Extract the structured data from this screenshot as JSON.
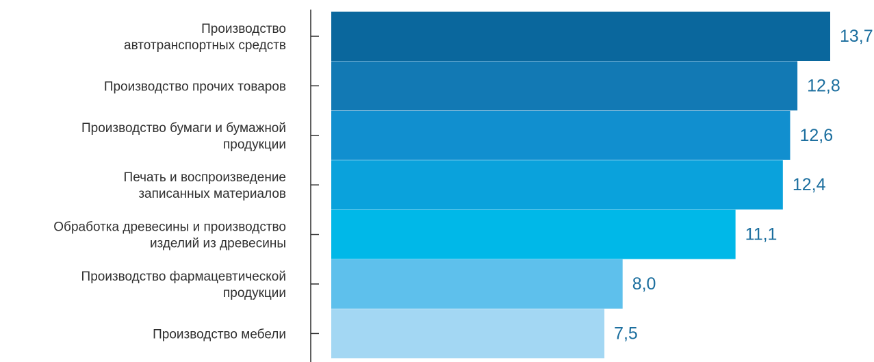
{
  "chart_data": {
    "type": "bar",
    "orientation": "horizontal",
    "title": "",
    "xlabel": "",
    "ylabel": "",
    "categories": [
      [
        "Производство",
        "автотранспортных средств"
      ],
      [
        "Производство прочих товаров"
      ],
      [
        "Производство бумаги и бумажной",
        "продукции"
      ],
      [
        "Печать и воспроизведение",
        "записанных материалов"
      ],
      [
        "Обработка древесины и производство",
        "изделий из древесины"
      ],
      [
        "Производство фармацевтической",
        "продукции"
      ],
      [
        "Производство мебели"
      ]
    ],
    "values": [
      13.7,
      12.8,
      12.6,
      12.4,
      11.1,
      8.0,
      7.5
    ],
    "value_labels": [
      "13,7",
      "12,8",
      "12,6",
      "12,4",
      "11,1",
      "8,0",
      "7,5"
    ],
    "bar_colors": [
      "#0a679d",
      "#1279b4",
      "#118fcf",
      "#0aa2dc",
      "#00b8e8",
      "#5ec0ec",
      "#a3d7f3"
    ],
    "value_label_color": "#1b6e9e",
    "grid": false,
    "legend": "none"
  }
}
